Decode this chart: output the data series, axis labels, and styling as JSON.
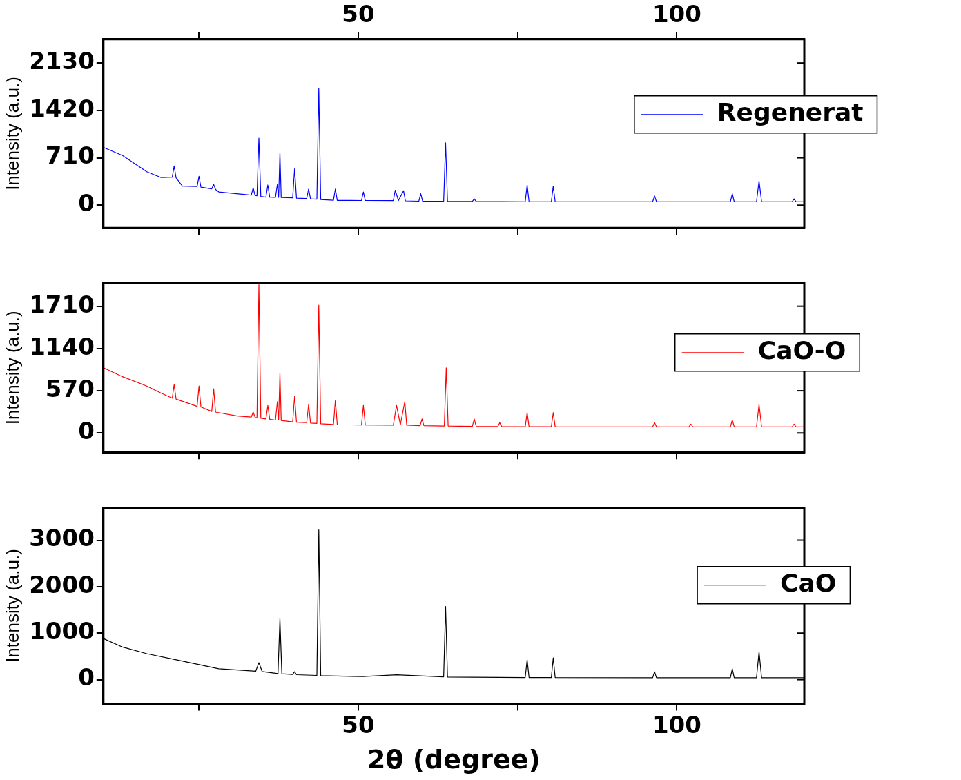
{
  "chart_data": [
    {
      "type": "line",
      "ylabel": "Intensity (a.u.)",
      "legend": "top right",
      "tick_labels": "y",
      "xlim": [
        10,
        120
      ],
      "xticks": [
        {
          "value": 25,
          "label": null
        },
        {
          "value": 50,
          "label": null
        },
        {
          "value": 75,
          "label": null
        },
        {
          "value": 100,
          "label": null
        }
      ],
      "x2lim": [
        10,
        120
      ],
      "x2ticks": [
        {
          "value": 25,
          "label": null
        },
        50,
        {
          "value": 75,
          "label": null
        },
        100
      ],
      "ylim": [
        -340,
        2485
      ],
      "yticks": [
        0,
        710,
        1420,
        2130
      ],
      "x": [
        10,
        13,
        16.8,
        19,
        20.8,
        21.1,
        21.4,
        22.4,
        24.7,
        25.0,
        25.3,
        27.0,
        27.3,
        27.6,
        28.1,
        32.6,
        33.2,
        33.5,
        33.8,
        34.1,
        34.4,
        34.7,
        35.5,
        35.8,
        36.1,
        37.0,
        37.3,
        37.5,
        37.7,
        37.9,
        39.7,
        40.0,
        40.3,
        41.9,
        42.2,
        42.5,
        43.5,
        43.8,
        44.1,
        46.1,
        46.4,
        46.7,
        50.5,
        50.8,
        51.1,
        55.5,
        55.8,
        56.3,
        57.1,
        57.4,
        59.5,
        59.8,
        60.1,
        63.4,
        63.7,
        64.0,
        67.9,
        68.2,
        68.5,
        76.2,
        76.5,
        76.8,
        80.3,
        80.6,
        80.9,
        96.2,
        96.5,
        96.8,
        108.4,
        108.7,
        109.0,
        112.5,
        112.9,
        113.3,
        118.1,
        118.4,
        118.7,
        120
      ],
      "series": [
        {
          "name": "Regenerat",
          "color": "#0000ff",
          "values": [
            866,
            745,
            502,
            416,
            420,
            589,
            410,
            286,
            280,
            433,
            270,
            245,
            312,
            235,
            199,
            156,
            150,
            260,
            145,
            140,
            1004,
            130,
            120,
            303,
            120,
            118,
            312,
            118,
            788,
            115,
            110,
            545,
            105,
            100,
            242,
            95,
            90,
            1749,
            85,
            75,
            242,
            72,
            70,
            199,
            70,
            68,
            225,
            70,
            216,
            65,
            60,
            173,
            60,
            60,
            935,
            60,
            55,
            95,
            55,
            52,
            303,
            52,
            52,
            286,
            52,
            52,
            139,
            52,
            52,
            173,
            52,
            52,
            364,
            52,
            52,
            95,
            52,
            52
          ]
        }
      ]
    },
    {
      "type": "line",
      "ylabel": "Intensity (a.u.)",
      "legend": "top right",
      "tick_labels": "y",
      "xlim": [
        10,
        120
      ],
      "xticks": [
        {
          "value": 25,
          "label": null
        },
        {
          "value": 50,
          "label": null
        },
        {
          "value": 75,
          "label": null
        },
        {
          "value": 100,
          "label": null
        }
      ],
      "ylim": [
        -260,
        2020
      ],
      "yticks": [
        0,
        570,
        1140,
        1710
      ],
      "x": [
        10,
        13,
        16.8,
        19,
        20.8,
        21.1,
        21.4,
        24.7,
        25.0,
        25.3,
        27.0,
        27.3,
        27.6,
        31.0,
        33.2,
        33.5,
        33.8,
        34.1,
        34.4,
        34.7,
        35.5,
        35.8,
        36.1,
        37.0,
        37.3,
        37.5,
        37.7,
        37.9,
        39.7,
        40.0,
        40.3,
        41.9,
        42.2,
        42.5,
        43.5,
        43.8,
        44.1,
        46.1,
        46.4,
        46.7,
        50.5,
        50.8,
        51.1,
        55.5,
        56.0,
        56.6,
        57.3,
        57.6,
        59.7,
        60.0,
        60.3,
        63.5,
        63.8,
        64.1,
        67.9,
        68.2,
        68.5,
        71.9,
        72.2,
        72.5,
        76.2,
        76.5,
        76.8,
        80.3,
        80.6,
        80.9,
        96.2,
        96.5,
        96.8,
        101.9,
        102.2,
        102.5,
        108.4,
        108.7,
        109.0,
        112.5,
        112.9,
        113.3,
        118.1,
        118.4,
        118.7,
        120
      ],
      "series": [
        {
          "name": "CaO-O",
          "color": "#ff0000",
          "values": [
            880,
            760,
            634,
            540,
            470,
            655,
            458,
            360,
            634,
            352,
            290,
            598,
            282,
            230,
            215,
            282,
            211,
            205,
            2000,
            200,
            190,
            373,
            185,
            175,
            422,
            175,
            810,
            170,
            150,
            493,
            145,
            140,
            387,
            135,
            130,
            1725,
            125,
            115,
            443,
            112,
            108,
            373,
            108,
            106,
            373,
            110,
            422,
            106,
            100,
            190,
            100,
            95,
            880,
            95,
            90,
            190,
            90,
            88,
            141,
            88,
            86,
            275,
            86,
            86,
            275,
            86,
            84,
            141,
            84,
            84,
            120,
            84,
            84,
            176,
            84,
            84,
            387,
            84,
            84,
            120,
            84,
            84
          ]
        }
      ]
    },
    {
      "type": "line",
      "ylabel": "Intensity (a.u.)",
      "xlabel": "2θ (degree)",
      "legend": "top right",
      "xlim": [
        10,
        120
      ],
      "xticks": [
        {
          "value": 25,
          "label": null
        },
        50,
        {
          "value": 75,
          "label": null
        },
        100
      ],
      "ylim": [
        -520,
        3700
      ],
      "yticks": [
        0,
        1000,
        2000,
        3000
      ],
      "x": [
        10,
        13,
        16.8,
        21.3,
        28.1,
        33.9,
        34.4,
        34.9,
        37.4,
        37.7,
        38.0,
        39.7,
        40.0,
        40.3,
        43.5,
        43.8,
        44.1,
        50.7,
        56.0,
        63.4,
        63.7,
        64.0,
        76.2,
        76.5,
        76.8,
        80.3,
        80.6,
        80.9,
        96.2,
        96.5,
        96.8,
        108.4,
        108.7,
        109.0,
        112.5,
        112.9,
        113.3,
        120
      ],
      "series": [
        {
          "name": "CaO",
          "color": "#000000",
          "values": [
            883,
            700,
            558,
            429,
            234,
            180,
            364,
            175,
            130,
            1312,
            125,
            110,
            169,
            105,
            90,
            3221,
            85,
            65,
            104,
            60,
            1572,
            55,
            45,
            429,
            45,
            45,
            468,
            45,
            40,
            169,
            40,
            40,
            234,
            40,
            40,
            598,
            40,
            39
          ]
        }
      ]
    }
  ]
}
